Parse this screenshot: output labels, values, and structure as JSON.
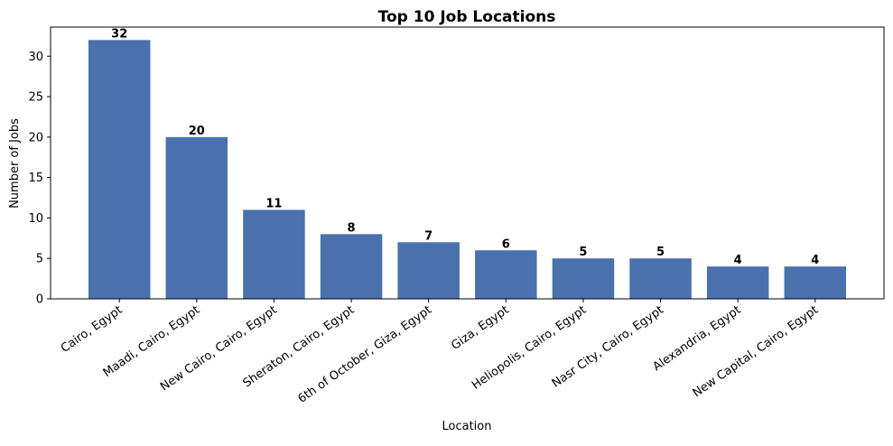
{
  "chart_data": {
    "type": "bar",
    "title": "Top 10 Job Locations",
    "x_label": "Location",
    "y_label": "Number of Jobs",
    "categories": [
      "Cairo, Egypt",
      "Maadi, Cairo, Egypt",
      "New Cairo, Cairo, Egypt",
      "Sheraton, Cairo, Egypt",
      "6th of October, Giza, Egypt",
      "Giza, Egypt",
      "Heliopolis, Cairo, Egypt",
      "Nasr City, Cairo, Egypt",
      "Alexandria, Egypt",
      "New Capital, Cairo, Egypt"
    ],
    "values": [
      32,
      20,
      11,
      8,
      7,
      6,
      5,
      5,
      4,
      4
    ],
    "color": "#4a71ae",
    "ylim": [
      0,
      33.6
    ],
    "yticks": [
      0,
      5,
      10,
      15,
      20,
      25,
      30
    ],
    "grid": false
  }
}
